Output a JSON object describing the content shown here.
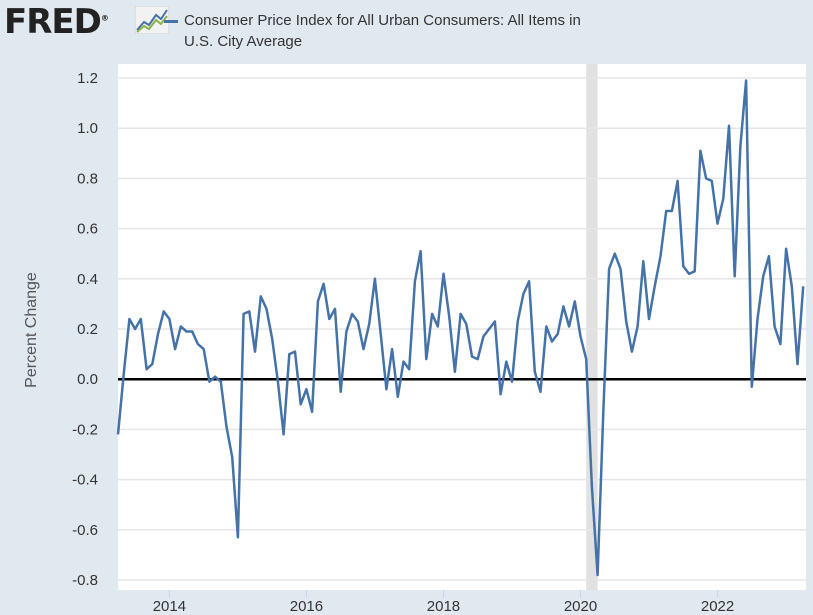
{
  "logo_text": "FRED",
  "legend": [
    "Consumer Price Index for All Urban Consumers: All Items in",
    "U.S. City Average"
  ],
  "chart_data": {
    "type": "line",
    "title": "",
    "xlabel": "",
    "ylabel": "Percent Change",
    "ylim": [
      -0.8,
      1.2
    ],
    "yticks": [
      "-0.8",
      "-0.6",
      "-0.4",
      "-0.2",
      "0.0",
      "0.2",
      "0.4",
      "0.6",
      "0.8",
      "1.0",
      "1.2"
    ],
    "xticks": [
      "2014",
      "2016",
      "2018",
      "2020",
      "2022"
    ],
    "x_start": "2013-04",
    "x_end": "2023-04",
    "frequency": "monthly",
    "grid": true,
    "line_color": "#4572a7",
    "recession_shading": [
      [
        "2020-02",
        "2020-04"
      ]
    ],
    "series": [
      {
        "name": "Consumer Price Index for All Urban Consumers: All Items in U.S. City Average",
        "values": [
          -0.22,
          0.02,
          0.24,
          0.2,
          0.24,
          0.04,
          0.06,
          0.18,
          0.27,
          0.24,
          0.12,
          0.21,
          0.19,
          0.19,
          0.14,
          0.12,
          -0.01,
          0.01,
          -0.01,
          -0.19,
          -0.31,
          -0.63,
          0.26,
          0.27,
          0.11,
          0.33,
          0.28,
          0.16,
          -0.01,
          -0.22,
          0.1,
          0.11,
          -0.1,
          -0.04,
          -0.13,
          0.31,
          0.38,
          0.24,
          0.28,
          -0.05,
          0.19,
          0.26,
          0.23,
          0.12,
          0.22,
          0.4,
          0.18,
          -0.04,
          0.12,
          -0.07,
          0.07,
          0.04,
          0.39,
          0.51,
          0.08,
          0.26,
          0.21,
          0.42,
          0.25,
          0.03,
          0.26,
          0.22,
          0.09,
          0.08,
          0.17,
          0.2,
          0.23,
          -0.06,
          0.07,
          -0.01,
          0.23,
          0.34,
          0.39,
          0.03,
          -0.05,
          0.21,
          0.15,
          0.18,
          0.29,
          0.21,
          0.31,
          0.17,
          0.08,
          -0.43,
          -0.78,
          -0.12,
          0.44,
          0.5,
          0.44,
          0.23,
          0.11,
          0.21,
          0.47,
          0.24,
          0.37,
          0.49,
          0.67,
          0.67,
          0.79,
          0.45,
          0.42,
          0.43,
          0.91,
          0.8,
          0.79,
          0.62,
          0.72,
          1.01,
          0.41,
          0.93,
          1.19,
          -0.03,
          0.24,
          0.41,
          0.49,
          0.21,
          0.14,
          0.52,
          0.37,
          0.06,
          0.37
        ]
      }
    ]
  }
}
